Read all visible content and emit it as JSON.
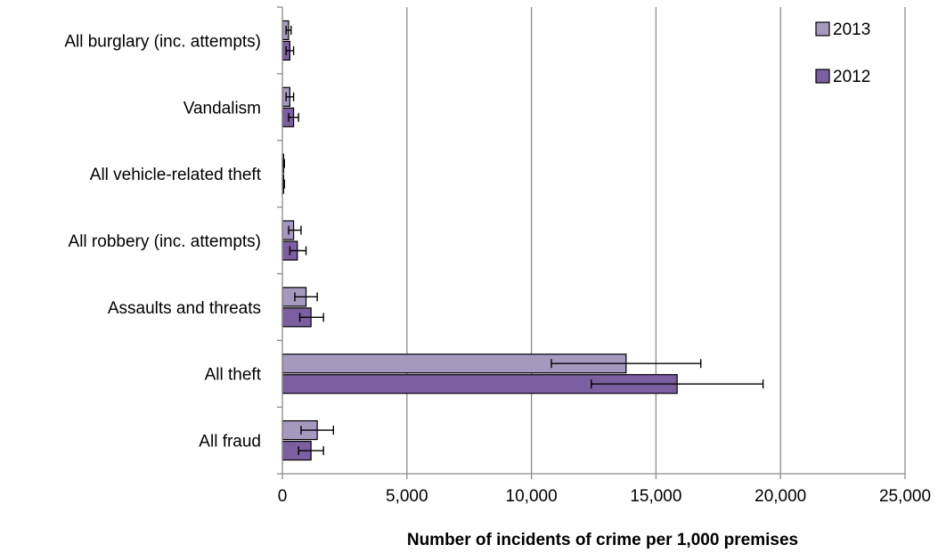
{
  "chart_data": {
    "type": "bar",
    "orientation": "horizontal",
    "categories": [
      "All burglary (inc. attempts)",
      "Vandalism",
      "All vehicle-related theft",
      "All robbery (inc. attempts)",
      "Assaults and threats",
      "All theft",
      "All fraud"
    ],
    "series": [
      {
        "name": "2013",
        "color": "#a599c0",
        "values": [
          250,
          300,
          50,
          450,
          950,
          13800,
          1400
        ],
        "error_low": [
          150,
          150,
          20,
          250,
          500,
          10800,
          750
        ],
        "error_high": [
          350,
          450,
          80,
          750,
          1400,
          16800,
          2050
        ]
      },
      {
        "name": "2012",
        "color": "#7b5fa0",
        "values": [
          300,
          450,
          50,
          600,
          1150,
          15850,
          1150
        ],
        "error_low": [
          150,
          250,
          20,
          300,
          700,
          12400,
          650
        ],
        "error_high": [
          450,
          650,
          80,
          950,
          1650,
          19300,
          1650
        ]
      }
    ],
    "xlabel": "Number of incidents of crime per 1,000 premises",
    "xlim": [
      0,
      25000
    ],
    "x_ticks": [
      0,
      5000,
      10000,
      15000,
      20000,
      25000
    ],
    "x_tick_labels": [
      "0",
      "5,000",
      "10,000",
      "15,000",
      "20,000",
      "25,000"
    ],
    "grid": "vertical",
    "legend": "top-right",
    "error_bars": true
  }
}
